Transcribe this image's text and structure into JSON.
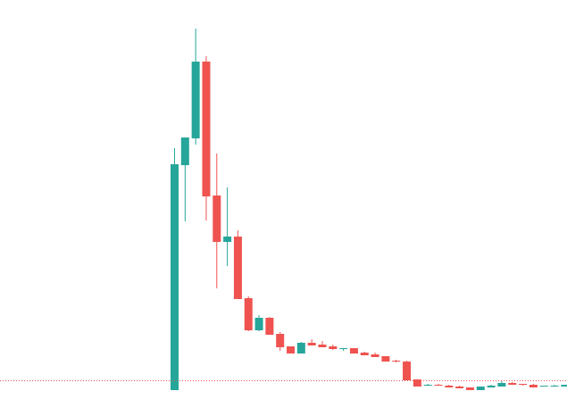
{
  "chart_data": {
    "type": "candlestick",
    "title": "",
    "xlabel": "",
    "ylabel": "",
    "grid": false,
    "legend": "none",
    "ylim": [
      0,
      466
    ],
    "colors": {
      "up": "#26a69a",
      "down": "#ef5350",
      "price_line": "#ef5350"
    },
    "price_line": 40,
    "candles": [
      {
        "o": 29,
        "h": 300,
        "l": 29,
        "c": 282
      },
      {
        "o": 281,
        "h": 312,
        "l": 218,
        "c": 312
      },
      {
        "o": 311,
        "h": 434,
        "l": 304,
        "c": 397
      },
      {
        "o": 397,
        "h": 403,
        "l": 219,
        "c": 246
      },
      {
        "o": 247,
        "h": 294,
        "l": 143,
        "c": 195
      },
      {
        "o": 195,
        "h": 256,
        "l": 168,
        "c": 201
      },
      {
        "o": 201,
        "h": 208,
        "l": 131,
        "c": 131
      },
      {
        "o": 132,
        "h": 134,
        "l": 95,
        "c": 96
      },
      {
        "o": 96,
        "h": 113,
        "l": 95,
        "c": 110
      },
      {
        "o": 110,
        "h": 111,
        "l": 91,
        "c": 91
      },
      {
        "o": 92,
        "h": 94,
        "l": 73,
        "c": 77
      },
      {
        "o": 78,
        "h": 78,
        "l": 70,
        "c": 70
      },
      {
        "o": 70,
        "h": 83,
        "l": 70,
        "c": 82
      },
      {
        "o": 82,
        "h": 86,
        "l": 79,
        "c": 79
      },
      {
        "o": 80,
        "h": 84,
        "l": 77,
        "c": 77
      },
      {
        "o": 78,
        "h": 80,
        "l": 74,
        "c": 75
      },
      {
        "o": 75,
        "h": 76,
        "l": 73,
        "c": 76
      },
      {
        "o": 76,
        "h": 76,
        "l": 70,
        "c": 70
      },
      {
        "o": 71,
        "h": 72,
        "l": 68,
        "c": 68
      },
      {
        "o": 69,
        "h": 71,
        "l": 66,
        "c": 66
      },
      {
        "o": 67,
        "h": 67,
        "l": 61,
        "c": 61
      },
      {
        "o": 62,
        "h": 63,
        "l": 60,
        "c": 61
      },
      {
        "o": 61,
        "h": 62,
        "l": 40,
        "c": 40
      },
      {
        "o": 41,
        "h": 41,
        "l": 33,
        "c": 33
      },
      {
        "o": 34,
        "h": 36,
        "l": 34,
        "c": 35
      },
      {
        "o": 35,
        "h": 36,
        "l": 34,
        "c": 34
      },
      {
        "o": 34,
        "h": 35,
        "l": 32,
        "c": 32
      },
      {
        "o": 33,
        "h": 34,
        "l": 31,
        "c": 31
      },
      {
        "o": 32,
        "h": 32,
        "l": 29,
        "c": 29
      },
      {
        "o": 29,
        "h": 33,
        "l": 29,
        "c": 33
      },
      {
        "o": 32,
        "h": 35,
        "l": 32,
        "c": 34
      },
      {
        "o": 33,
        "h": 39,
        "l": 33,
        "c": 37
      },
      {
        "o": 37,
        "h": 38,
        "l": 35,
        "c": 35
      },
      {
        "o": 36,
        "h": 36,
        "l": 34,
        "c": 35
      },
      {
        "o": 35,
        "h": 36,
        "l": 32,
        "c": 32
      },
      {
        "o": 33,
        "h": 34,
        "l": 33,
        "c": 34
      },
      {
        "o": 33,
        "h": 35,
        "l": 33,
        "c": 34
      },
      {
        "o": 33,
        "h": 35,
        "l": 33,
        "c": 35
      }
    ]
  }
}
